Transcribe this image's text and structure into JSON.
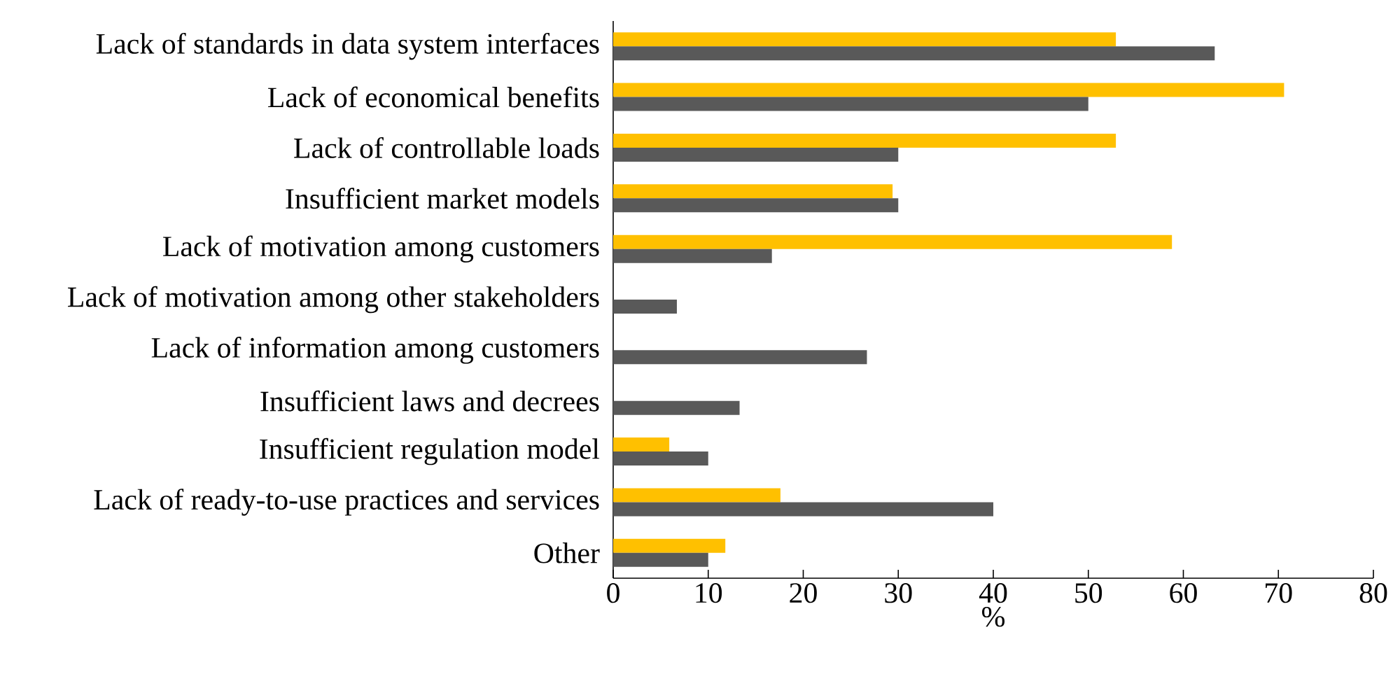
{
  "chart_data": {
    "type": "bar",
    "orientation": "horizontal",
    "xlabel": "%",
    "categories": [
      "Lack of standards in data system interfaces",
      "Lack of economical benefits",
      "Lack of controllable loads",
      "Insufficient market models",
      "Lack of motivation among customers",
      "Lack of motivation among other stakeholders",
      "Lack of information among customers",
      "Insufficient laws and decrees",
      "Insufficient regulation model",
      "Lack of ready-to-use practices and services",
      "Other"
    ],
    "series": [
      {
        "color": "#ffc000",
        "values": [
          52.9,
          70.6,
          52.9,
          29.4,
          58.8,
          null,
          null,
          null,
          5.9,
          17.6,
          11.8
        ]
      },
      {
        "color": "#595959",
        "values": [
          63.3,
          50.0,
          30.0,
          30.0,
          16.7,
          6.7,
          26.7,
          13.3,
          10.0,
          40.0,
          10.0
        ]
      }
    ],
    "xlim": [
      0,
      80
    ],
    "xticks": [
      0,
      10,
      20,
      30,
      40,
      50,
      60,
      70,
      80
    ],
    "grid": false
  }
}
